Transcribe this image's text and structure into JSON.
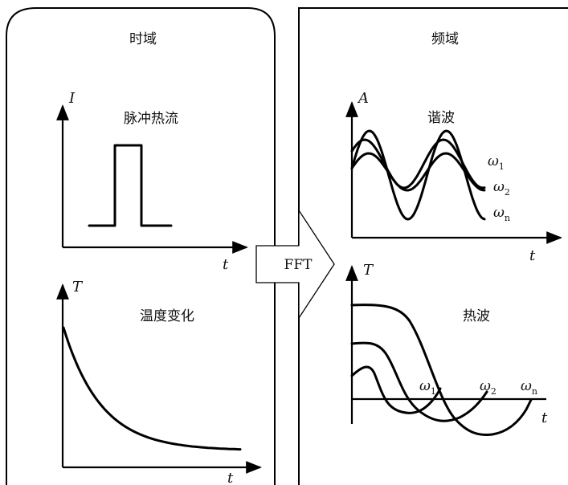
{
  "left_panel": {
    "title": "时域",
    "pulse": {
      "title": "脉冲热流",
      "y_label": "I",
      "x_label": "t"
    },
    "temp": {
      "title": "温度变化",
      "y_label": "T",
      "x_label": "t"
    }
  },
  "arrow": {
    "label": "FFT"
  },
  "right_panel": {
    "title": "频域",
    "harmonics": {
      "title": "谐波",
      "y_label": "A",
      "x_label": "t",
      "series": [
        {
          "label_main": "ω",
          "label_sub": "1"
        },
        {
          "label_main": "ω",
          "label_sub": "2"
        },
        {
          "label_main": "ω",
          "label_sub": "n"
        }
      ]
    },
    "thermal_waves": {
      "title": "热波",
      "y_label": "T",
      "x_label": "t",
      "markers": [
        {
          "label_main": "ω",
          "label_sub": "1"
        },
        {
          "label_main": "ω",
          "label_sub": "2"
        },
        {
          "label_main": "ω",
          "label_sub": "n"
        }
      ]
    }
  }
}
